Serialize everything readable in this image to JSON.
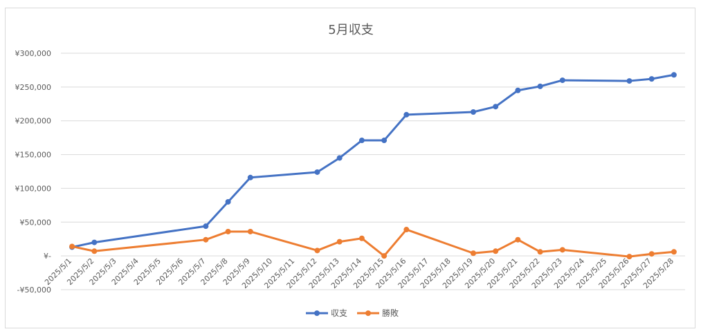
{
  "chart_data": {
    "type": "line",
    "title": "5月収支",
    "xlabel": "",
    "ylabel": "",
    "ylim": [
      -50000,
      300000
    ],
    "ytick_values": [
      -50000,
      0,
      50000,
      100000,
      150000,
      200000,
      250000,
      300000
    ],
    "ytick_labels": [
      "-¥50,000",
      "¥-",
      "¥50,000",
      "¥100,000",
      "¥150,000",
      "¥200,000",
      "¥250,000",
      "¥300,000"
    ],
    "categories": [
      "2025/5/1",
      "2025/5/2",
      "2025/5/3",
      "2025/5/4",
      "2025/5/5",
      "2025/5/6",
      "2025/5/7",
      "2025/5/8",
      "2025/5/9",
      "2025/5/10",
      "2025/5/11",
      "2025/5/12",
      "2025/5/13",
      "2025/5/14",
      "2025/5/15",
      "2025/5/16",
      "2025/5/17",
      "2025/5/18",
      "2025/5/19",
      "2025/5/20",
      "2025/5/21",
      "2025/5/22",
      "2025/5/23",
      "2025/5/24",
      "2025/5/25",
      "2025/5/26",
      "2025/5/27",
      "2025/5/28"
    ],
    "grid": true,
    "legend_position": "bottom",
    "series": [
      {
        "name": "収支",
        "color": "#4472c4",
        "values": [
          13000,
          20000,
          null,
          null,
          null,
          null,
          44000,
          80000,
          116000,
          null,
          null,
          124000,
          145000,
          171000,
          171000,
          209000,
          null,
          null,
          213000,
          221000,
          245000,
          251000,
          260000,
          null,
          null,
          259000,
          262000,
          268000
        ]
      },
      {
        "name": "勝敗",
        "color": "#ed7d31",
        "values": [
          14000,
          7000,
          null,
          null,
          null,
          null,
          24000,
          36000,
          36000,
          null,
          null,
          8000,
          21000,
          26000,
          0,
          39000,
          null,
          null,
          4000,
          7000,
          24000,
          6000,
          9000,
          null,
          null,
          -1000,
          3000,
          6000
        ]
      }
    ]
  }
}
